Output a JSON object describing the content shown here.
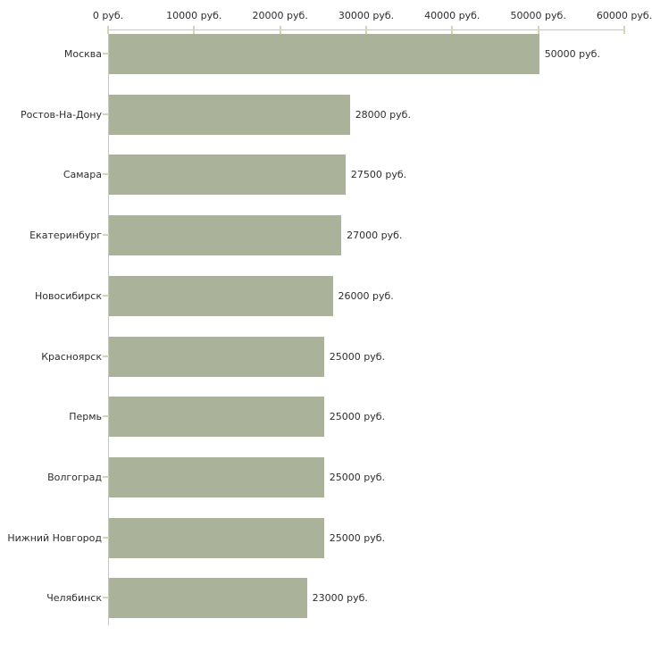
{
  "chart_data": {
    "type": "bar",
    "orientation": "horizontal",
    "title": "",
    "categories": [
      "Москва",
      "Ростов-На-Дону",
      "Самара",
      "Екатеринбург",
      "Новосибирск",
      "Красноярск",
      "Пермь",
      "Волгоград",
      "Нижний Новгород",
      "Челябинск"
    ],
    "values": [
      50000,
      28000,
      27500,
      27000,
      26000,
      25000,
      25000,
      25000,
      25000,
      23000
    ],
    "value_labels": [
      "50000 руб.",
      "28000 руб.",
      "27500 руб.",
      "27000 руб.",
      "26000 руб.",
      "25000 руб.",
      "25000 руб.",
      "25000 руб.",
      "25000 руб.",
      "23000 руб."
    ],
    "x_ticks": [
      0,
      10000,
      20000,
      30000,
      40000,
      50000,
      60000
    ],
    "x_tick_labels": [
      "0 руб.",
      "10000 руб.",
      "20000 руб.",
      "30000 руб.",
      "40000 руб.",
      "50000 руб.",
      "60000 руб."
    ],
    "xlim": [
      0,
      60000
    ],
    "unit": "руб.",
    "xlabel": "",
    "ylabel": "",
    "grid": false,
    "legend": false,
    "axis_position": "top",
    "bar_color": "#abb29a",
    "axis_line_color": "#c6c6c6",
    "tick_color": "#d6d6ae",
    "text_color": "#2e2e2e"
  }
}
